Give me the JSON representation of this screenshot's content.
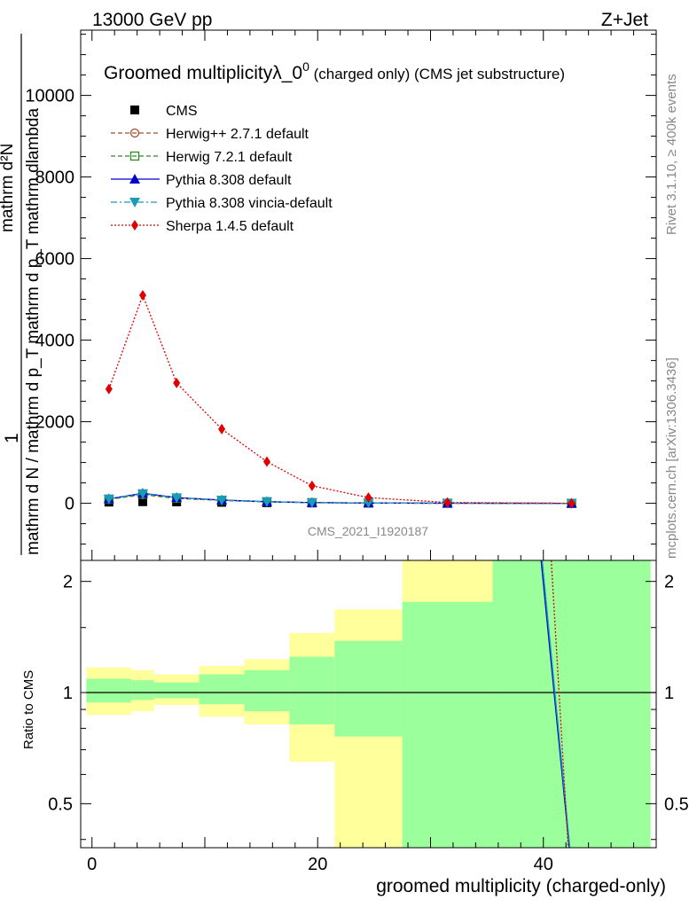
{
  "header": {
    "energy_label": "13000 GeV pp",
    "process_label": "Z+Jet",
    "right_label_top": "Rivet 3.1.10, ≥ 400k events",
    "right_label_bottom": "mcplots.cern.ch [arXiv:1306.3436]",
    "analysis_id": "CMS_2021_I1920187"
  },
  "chart_data": [
    {
      "type": "line",
      "title": "Groomed multiplicityλ_0⁰ (charged only) (CMS jet substructure)",
      "title_main": "Groomed multiplicityλ_0",
      "title_sup": "0",
      "title_rest": " (charged only) (CMS jet substructure)",
      "ylabel_parts": [
        "1",
        "mathrm d N / mathrm d p_T mathrm d p_T mathrm dlambda",
        "mathrm d²N"
      ],
      "ylabel_text": "1 / mathrm d N / mathrm d p_T mathrm d p_T mathrm d²N / mathrm dlambda",
      "ylim": [
        -1400,
        11600
      ],
      "xlim": [
        -1,
        50
      ],
      "yticks": [
        0,
        2000,
        4000,
        6000,
        8000,
        10000
      ],
      "ytick_labels": [
        "0",
        "2000",
        "4000",
        "6000",
        "8000",
        "10000"
      ],
      "x": [
        1.5,
        4.5,
        7.5,
        11.5,
        15.5,
        19.5,
        24.5,
        31.5,
        42.5
      ],
      "series": [
        {
          "name": "CMS",
          "color": "#000000",
          "marker": "square-filled",
          "line": "none",
          "values": [
            30,
            40,
            35,
            25,
            15,
            8,
            4,
            1,
            0
          ]
        },
        {
          "name": "Herwig++ 2.7.1 default",
          "color": "#a0522d",
          "marker": "circle-open",
          "line": "dashed",
          "values": [
            95,
            210,
            120,
            70,
            35,
            15,
            6,
            2,
            0
          ]
        },
        {
          "name": "Herwig 7.2.1 default",
          "color": "#2e8b22",
          "marker": "square-open",
          "line": "dashed",
          "values": [
            100,
            225,
            130,
            75,
            38,
            16,
            6,
            2,
            0
          ]
        },
        {
          "name": "Pythia 8.308 default",
          "color": "#0000cc",
          "marker": "triangle-up",
          "line": "solid",
          "values": [
            110,
            245,
            140,
            80,
            40,
            18,
            7,
            2,
            0
          ]
        },
        {
          "name": "Pythia 8.308 vincia-default",
          "color": "#1a9bb8",
          "marker": "triangle-down",
          "line": "dashdot",
          "values": [
            105,
            235,
            135,
            78,
            39,
            17,
            7,
            2,
            0
          ]
        },
        {
          "name": "Sherpa 1.4.5 default",
          "color": "#e00000",
          "marker": "diamond",
          "line": "dotted",
          "values": [
            2800,
            5100,
            2950,
            1820,
            1020,
            430,
            140,
            20,
            0
          ]
        }
      ]
    },
    {
      "type": "area",
      "ylabel": "Ratio to CMS",
      "xlabel": "groomed multiplicity (charged-only)",
      "ylim": [
        0.38,
        2.28
      ],
      "yticks": [
        0.5,
        1,
        2
      ],
      "ytick_labels": [
        "0.5",
        "1",
        "2"
      ],
      "xticks": [
        0,
        20,
        40
      ],
      "xtick_labels": [
        "0",
        "20",
        "40"
      ],
      "bins": [
        {
          "lo": -0.5,
          "hi": 3.5,
          "stat_lo": 0.94,
          "stat_hi": 1.09,
          "tot_lo": 0.87,
          "tot_hi": 1.17
        },
        {
          "lo": 3.5,
          "hi": 5.5,
          "stat_lo": 0.955,
          "stat_hi": 1.08,
          "tot_lo": 0.89,
          "tot_hi": 1.15
        },
        {
          "lo": 5.5,
          "hi": 9.5,
          "stat_lo": 0.965,
          "stat_hi": 1.065,
          "tot_lo": 0.925,
          "tot_hi": 1.12
        },
        {
          "lo": 9.5,
          "hi": 13.5,
          "stat_lo": 0.93,
          "stat_hi": 1.12,
          "tot_lo": 0.86,
          "tot_hi": 1.18
        },
        {
          "lo": 13.5,
          "hi": 17.5,
          "stat_lo": 0.89,
          "stat_hi": 1.15,
          "tot_lo": 0.82,
          "tot_hi": 1.23
        },
        {
          "lo": 17.5,
          "hi": 21.5,
          "stat_lo": 0.82,
          "stat_hi": 1.25,
          "tot_lo": 0.65,
          "tot_hi": 1.45
        },
        {
          "lo": 21.5,
          "hi": 27.5,
          "stat_lo": 0.76,
          "stat_hi": 1.38,
          "tot_lo": 0.38,
          "tot_hi": 1.68
        },
        {
          "lo": 27.5,
          "hi": 35.5,
          "stat_lo": 0.38,
          "stat_hi": 1.76,
          "tot_lo": 0.38,
          "tot_hi": 2.28
        },
        {
          "lo": 35.5,
          "hi": 49.5,
          "stat_lo": 0.38,
          "stat_hi": 2.28,
          "tot_lo": 0.38,
          "tot_hi": 2.28
        }
      ],
      "band_colors": {
        "stat": "#9bff9b",
        "total": "#ffff9b"
      },
      "ratio_lines": [
        {
          "name": "Pythia 8.308 default",
          "color": "#0000cc",
          "x": [
            39.8,
            42.3
          ],
          "y": [
            2.28,
            0.38
          ]
        },
        {
          "name": "Pythia 8.308 vincia-default",
          "color": "#1a9bb8",
          "x": [
            39.9,
            42.35
          ],
          "y": [
            2.28,
            0.38
          ]
        },
        {
          "name": "Sherpa 1.4.5 default",
          "color": "#e00000",
          "x": [
            40.7,
            42.2
          ],
          "y": [
            2.28,
            0.38
          ]
        }
      ]
    }
  ]
}
